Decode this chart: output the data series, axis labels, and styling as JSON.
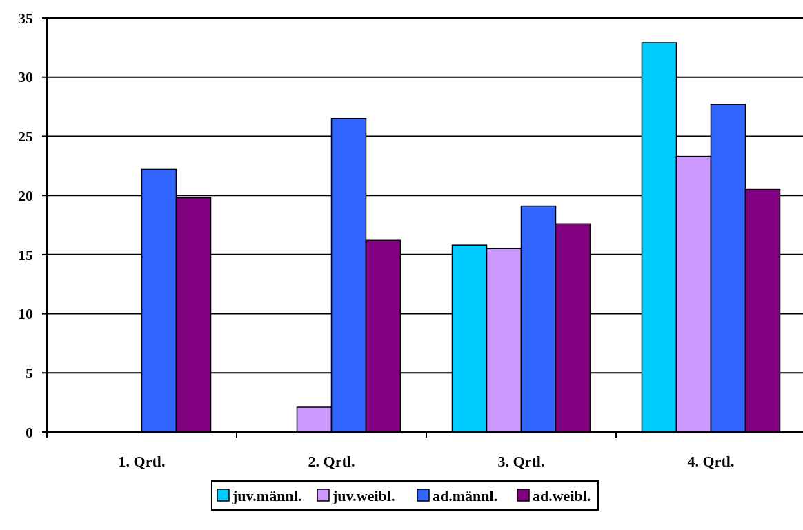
{
  "chart_data": {
    "type": "bar",
    "categories": [
      "1. Qrtl.",
      "2. Qrtl.",
      "3. Qrtl.",
      "4. Qrtl."
    ],
    "series": [
      {
        "name": "juv.männl.",
        "color": "#00ccff",
        "values": [
          null,
          null,
          15.8,
          32.9
        ]
      },
      {
        "name": "juv.weibl.",
        "color": "#cc99ff",
        "values": [
          null,
          2.1,
          15.5,
          23.3
        ]
      },
      {
        "name": "ad.männl.",
        "color": "#3366ff",
        "values": [
          22.2,
          26.5,
          19.1,
          27.7
        ]
      },
      {
        "name": "ad.weibl.",
        "color": "#800080",
        "values": [
          19.8,
          16.2,
          17.6,
          20.5
        ]
      }
    ],
    "ylim": [
      0,
      35
    ],
    "yticks": [
      0,
      5,
      10,
      15,
      20,
      25,
      30,
      35
    ],
    "grid": "y",
    "legend": "bottom"
  }
}
